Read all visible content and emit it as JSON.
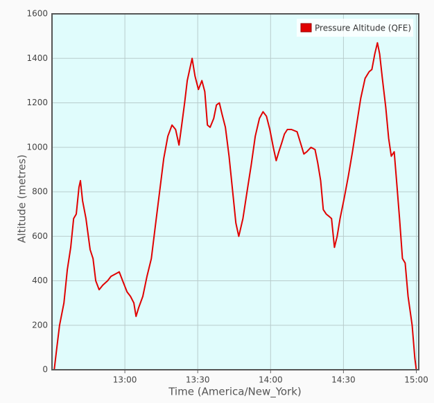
{
  "chart_data": {
    "type": "line",
    "x_label": "Time (America/New_York)",
    "y_label": "Altitude (metres)",
    "xlim": [
      0,
      151
    ],
    "xticks": [
      {
        "value": 30,
        "label": "13:00"
      },
      {
        "value": 60,
        "label": "13:30"
      },
      {
        "value": 90,
        "label": "14:00"
      },
      {
        "value": 120,
        "label": "14:30"
      },
      {
        "value": 150,
        "label": "15:00"
      }
    ],
    "ylim": [
      0,
      1600
    ],
    "yticks": [
      0,
      200,
      400,
      600,
      800,
      1000,
      1200,
      1400,
      1600
    ],
    "grid": true,
    "legend": "top-right",
    "x": [
      0.9,
      2.0,
      3.1,
      4.9,
      6.3,
      7.7,
      8.9,
      10.0,
      11.1,
      11.7,
      12.6,
      14.0,
      15.7,
      16.9,
      18.0,
      19.4,
      20.9,
      22.9,
      24.3,
      26.0,
      27.7,
      29.1,
      30.9,
      32.3,
      33.7,
      34.6,
      35.7,
      37.4,
      39.1,
      40.9,
      42.6,
      44.3,
      46.0,
      47.7,
      49.4,
      50.9,
      52.3,
      53.4,
      54.6,
      55.7,
      56.9,
      57.7,
      58.9,
      60.3,
      61.7,
      62.9,
      64.0,
      65.1,
      66.6,
      67.7,
      68.9,
      70.0,
      71.4,
      72.9,
      74.6,
      75.7,
      76.9,
      78.6,
      80.3,
      82.0,
      83.7,
      85.4,
      86.9,
      88.3,
      89.7,
      91.1,
      92.3,
      93.4,
      94.6,
      95.7,
      96.9,
      98.6,
      100.9,
      102.6,
      103.7,
      104.9,
      106.6,
      108.3,
      109.4,
      110.6,
      111.7,
      112.9,
      114.0,
      115.1,
      116.3,
      117.4,
      118.6,
      120.3,
      122.0,
      123.7,
      125.4,
      127.1,
      128.9,
      130.6,
      131.7,
      132.9,
      134.0,
      134.9,
      136.0,
      137.4,
      138.6,
      139.7,
      140.9,
      142.0,
      143.1,
      144.3,
      145.4,
      146.6,
      148.3,
      149.4,
      150.0
    ],
    "series": [
      {
        "name": "Pressure Altitude (QFE)",
        "color": "#e00000",
        "values": [
          0,
          100,
          200,
          300,
          450,
          550,
          680,
          700,
          820,
          850,
          760,
          680,
          540,
          500,
          400,
          360,
          380,
          400,
          420,
          430,
          440,
          400,
          350,
          330,
          300,
          240,
          280,
          330,
          420,
          500,
          650,
          800,
          950,
          1050,
          1100,
          1080,
          1010,
          1100,
          1200,
          1300,
          1360,
          1400,
          1320,
          1260,
          1300,
          1250,
          1100,
          1090,
          1130,
          1190,
          1200,
          1150,
          1090,
          960,
          780,
          660,
          600,
          680,
          800,
          920,
          1050,
          1130,
          1160,
          1140,
          1080,
          1000,
          940,
          980,
          1020,
          1060,
          1080,
          1080,
          1070,
          1010,
          970,
          980,
          1000,
          990,
          930,
          850,
          720,
          700,
          690,
          680,
          550,
          600,
          680,
          770,
          870,
          980,
          1100,
          1220,
          1310,
          1340,
          1350,
          1420,
          1470,
          1420,
          1310,
          1180,
          1040,
          960,
          980,
          830,
          680,
          500,
          480,
          330,
          200,
          50,
          0
        ]
      }
    ]
  }
}
